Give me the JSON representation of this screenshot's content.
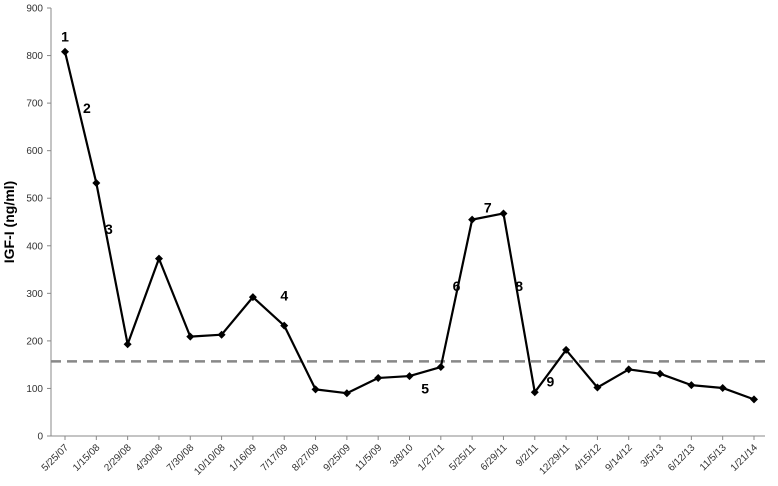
{
  "chart_data": {
    "type": "line",
    "title": "",
    "xlabel": "",
    "ylabel": "IGF-I (ng/ml)",
    "ylim": [
      0,
      900
    ],
    "yticks": [
      0,
      100,
      200,
      300,
      400,
      500,
      600,
      700,
      800,
      900
    ],
    "grid": false,
    "legend": "none",
    "categories": [
      "5/25/07",
      "1/15/08",
      "2/29/08",
      "4/30/08",
      "7/30/08",
      "10/10/08",
      "1/16/09",
      "7/17/09",
      "8/27/09",
      "9/25/09",
      "11/5/09",
      "3/8/10",
      "1/27/11",
      "5/25/11",
      "6/29/11",
      "9/2/11",
      "12/29/11",
      "4/15/12",
      "9/14/12",
      "3/5/13",
      "6/12/13",
      "11/5/13",
      "1/21/14"
    ],
    "series": [
      {
        "values": [
          808,
          532,
          193,
          373,
          209,
          213,
          292,
          232,
          98,
          90,
          122,
          126,
          145,
          455,
          468,
          92,
          181,
          102,
          140,
          131,
          107,
          101,
          77
        ],
        "color": "#000000",
        "marker": "diamond"
      }
    ],
    "reference_line": {
      "value": 157,
      "style": "dashed",
      "color": "#888888"
    },
    "annotations": [
      {
        "text": "1",
        "x": "5/25/07",
        "y": 840
      },
      {
        "text": "2",
        "x": "5/25/07",
        "y": 690,
        "x_offset": 0.7
      },
      {
        "text": "3",
        "x": "1/15/08",
        "y": 435,
        "x_offset": 0.4
      },
      {
        "text": "4",
        "x": "7/17/09",
        "y": 295
      },
      {
        "text": "5",
        "x": "3/8/10",
        "y": 100,
        "x_offset": 0.5
      },
      {
        "text": "6",
        "x": "1/27/11",
        "y": 315,
        "x_offset": 0.5
      },
      {
        "text": "7",
        "x": "5/25/11",
        "y": 480,
        "x_offset": 0.5
      },
      {
        "text": "8",
        "x": "6/29/11",
        "y": 315,
        "x_offset": 0.5
      },
      {
        "text": "9",
        "x": "9/2/11",
        "y": 115,
        "x_offset": 0.5
      }
    ]
  }
}
